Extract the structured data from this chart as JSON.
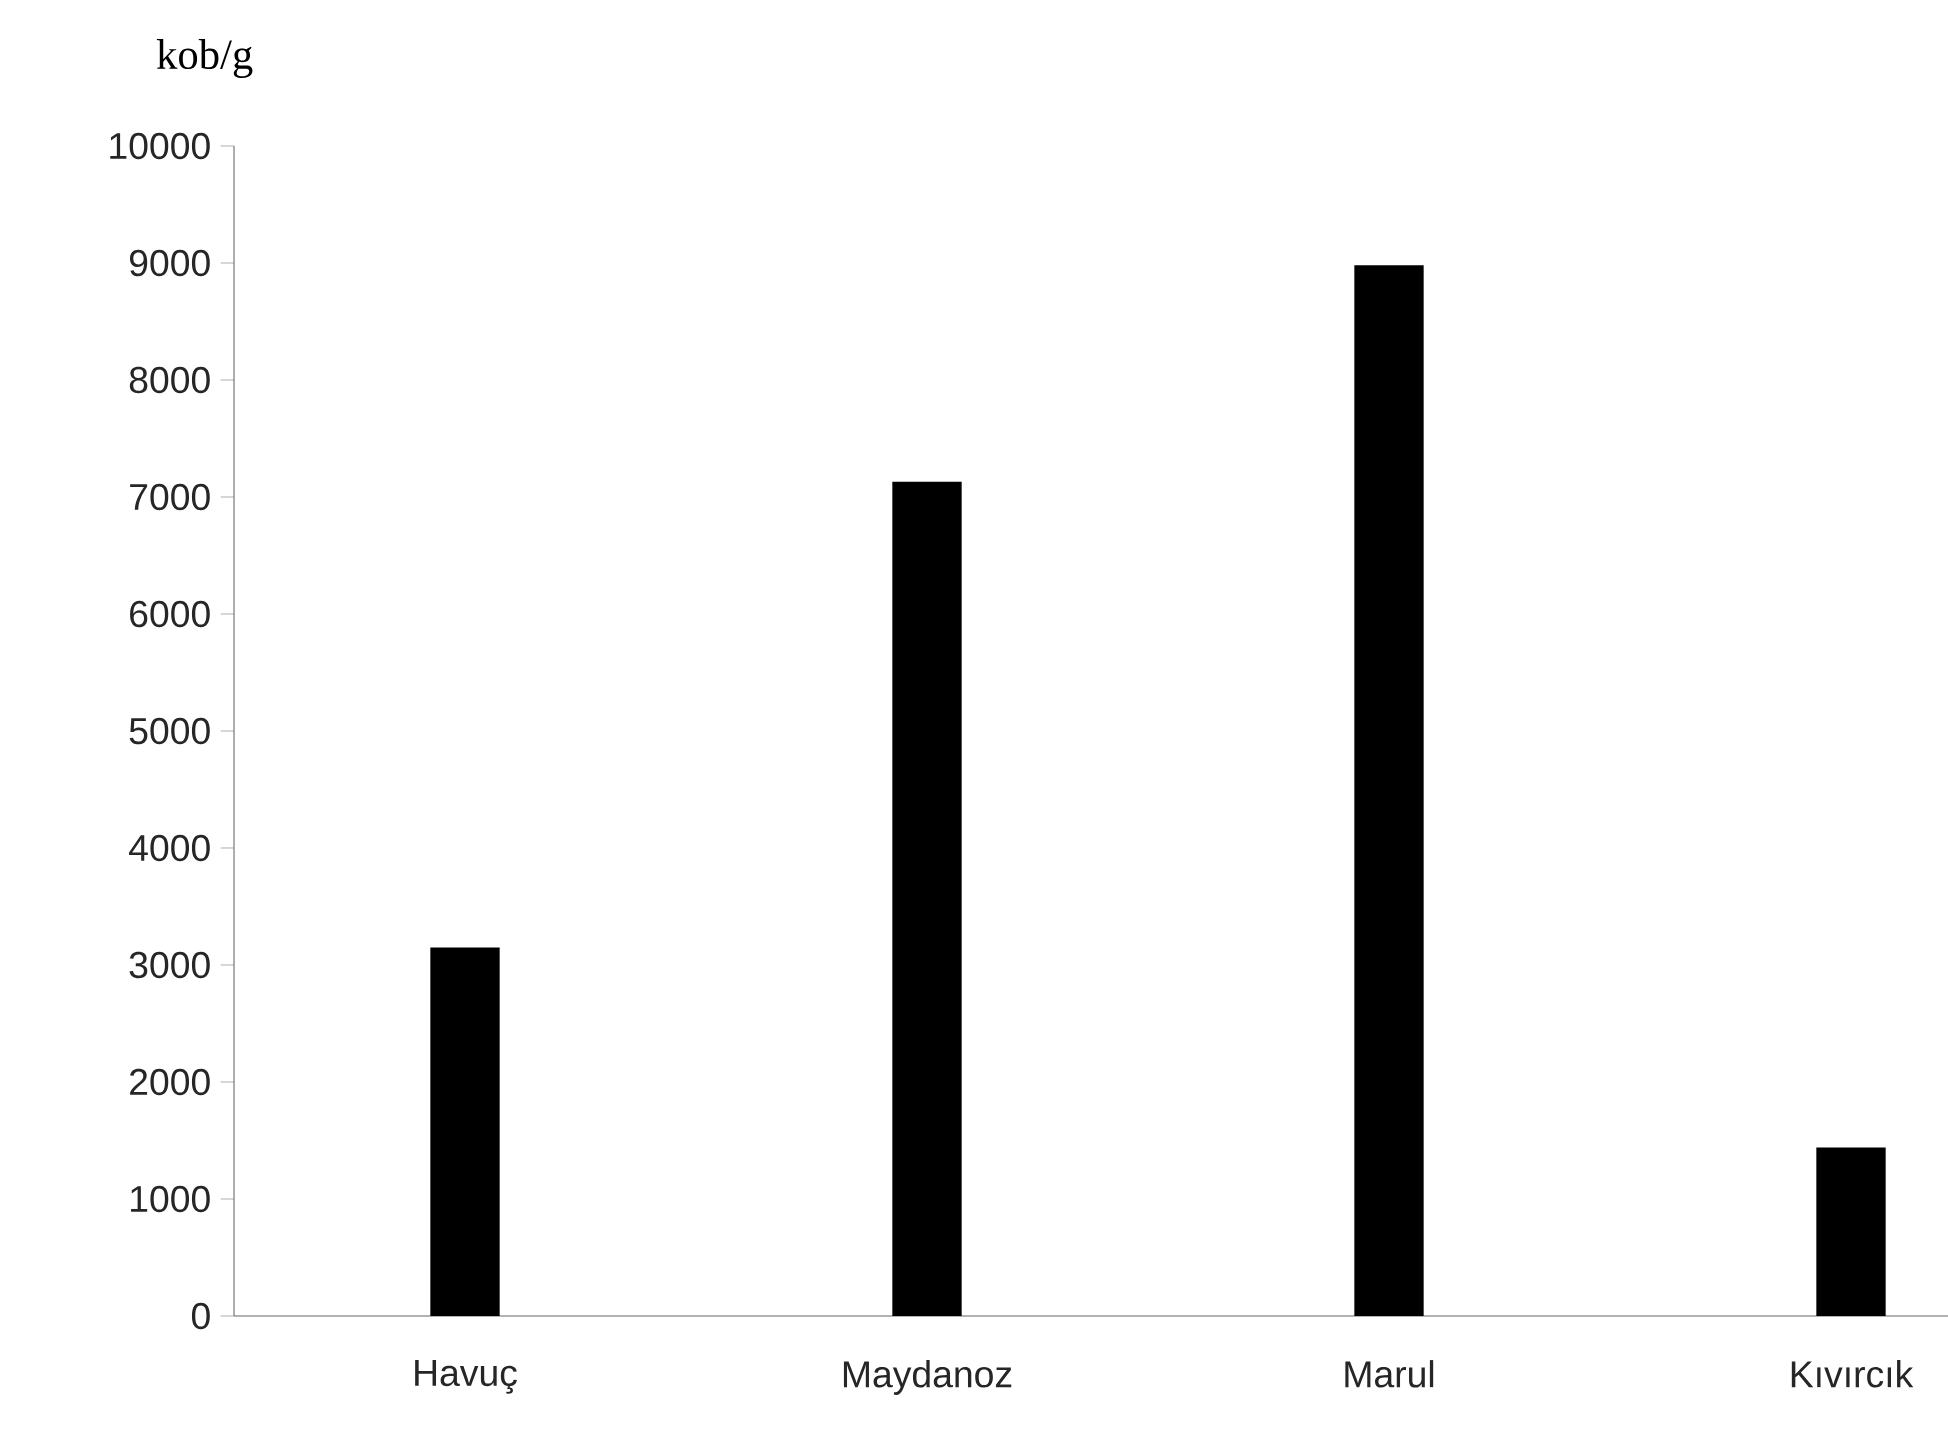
{
  "chart_data": {
    "type": "bar",
    "ylabel": "kob/g",
    "categories": [
      "Havuç",
      "Maydanoz",
      "Marul",
      "Kıvırcık"
    ],
    "values": [
      3150,
      7130,
      8980,
      1440
    ],
    "color": "#000000",
    "ylim": [
      0,
      10000
    ],
    "yticks": [
      0,
      1000,
      2000,
      3000,
      4000,
      5000,
      6000,
      7000,
      8000,
      9000,
      10000
    ]
  }
}
